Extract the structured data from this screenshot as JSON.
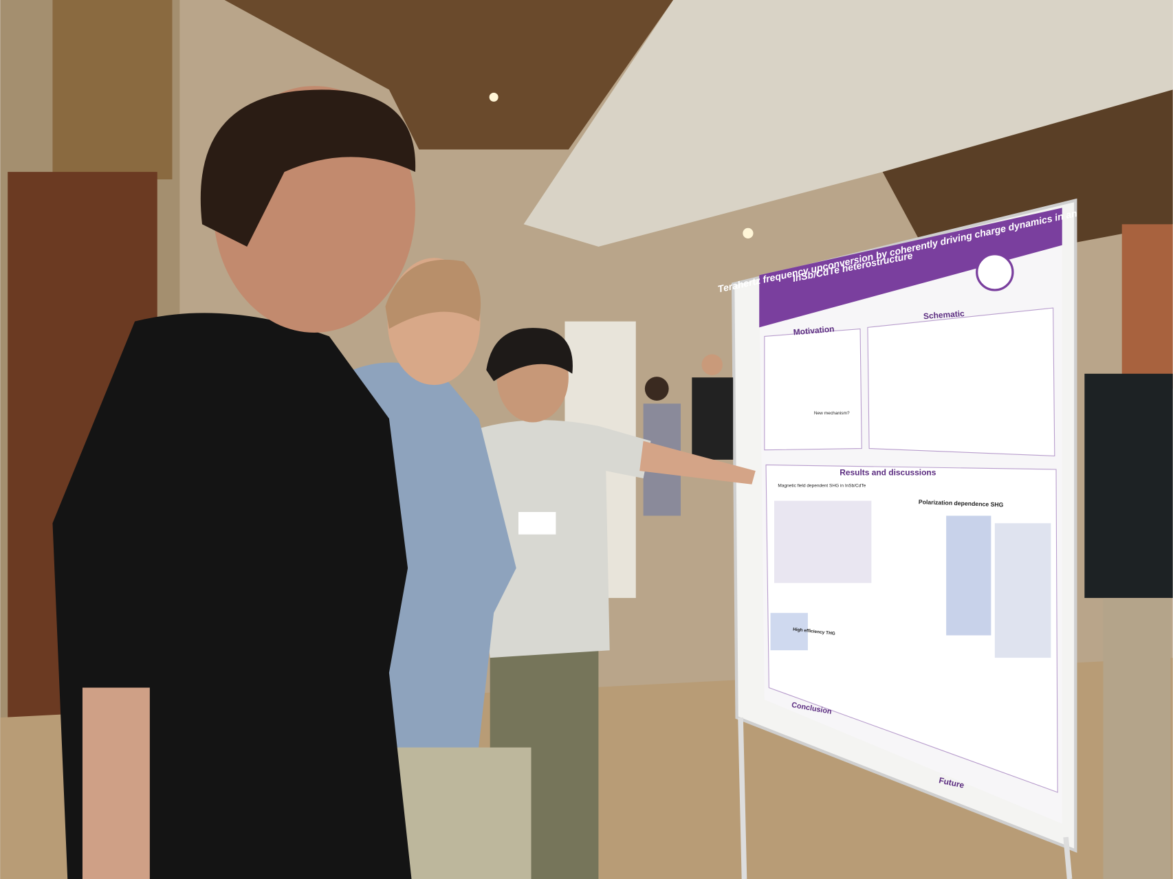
{
  "poster": {
    "title_line_1": "Terahertz frequency upconversion by coherently driving charge dynamics in an",
    "title_line_2": "InSb/CdTe heterostructure",
    "headers": {
      "motivation": "Motivation",
      "schematic": "Schematic",
      "results": "Results and discussions",
      "conclusion": "Conclusion",
      "future": "Future"
    },
    "subheaders": {
      "magnetic": "Magnetic field dependent SHG in InSb/CdTe",
      "polarization": "Polarization dependence SHG",
      "thg": "High efficiency THG",
      "mechanism": "New mechanism?"
    }
  }
}
